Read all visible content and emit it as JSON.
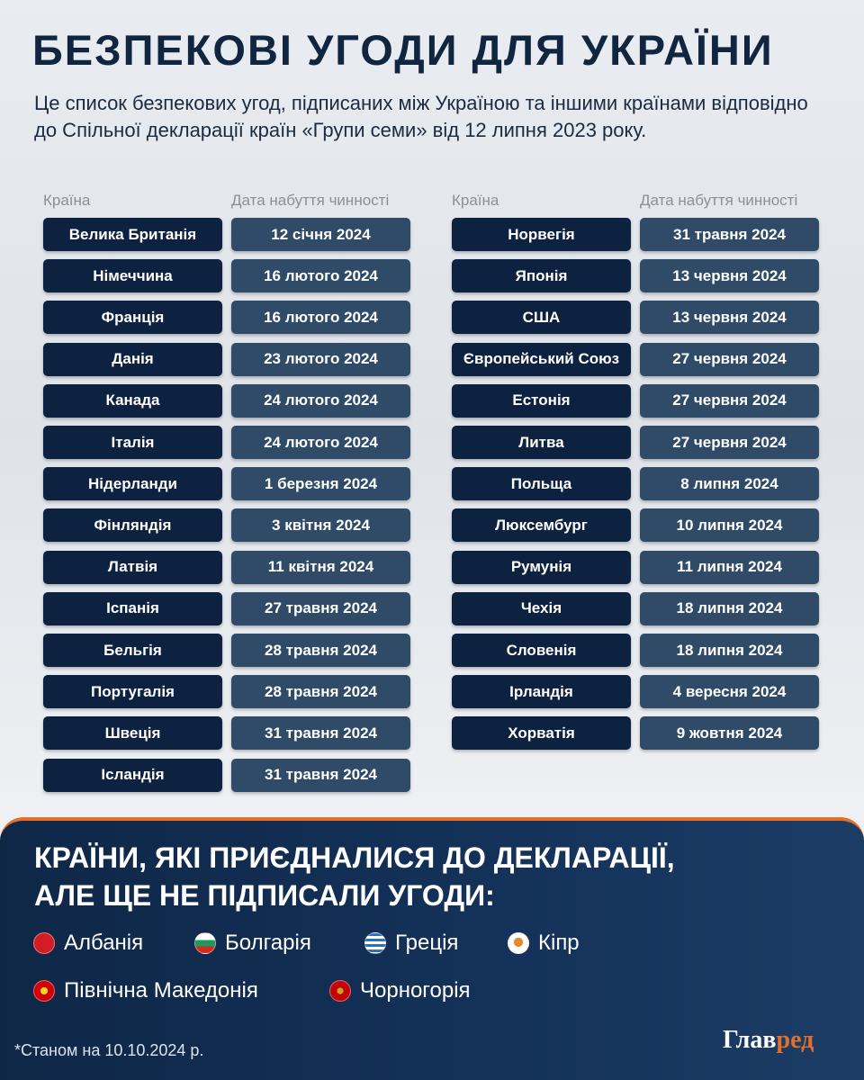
{
  "title": "БЕЗПЕКОВІ УГОДИ ДЛЯ УКРАЇНИ",
  "subtitle": "Це список безпекових угод, підписаних між Україною та іншими країнами відповідно до Спільної декларації країн «Групи семи» від 12 липня 2023 року.",
  "headers": {
    "country": "Країна",
    "date": "Дата набуття чинності"
  },
  "left": [
    [
      "Велика Британія",
      "12 січня 2024"
    ],
    [
      "Німеччина",
      "16 лютого 2024"
    ],
    [
      "Франція",
      "16 лютого 2024"
    ],
    [
      "Данія",
      "23 лютого 2024"
    ],
    [
      "Канада",
      "24 лютого 2024"
    ],
    [
      "Італія",
      "24 лютого 2024"
    ],
    [
      "Нідерланди",
      "1 березня 2024"
    ],
    [
      "Фінляндія",
      "3 квітня 2024"
    ],
    [
      "Латвія",
      "11 квітня 2024"
    ],
    [
      "Іспанія",
      "27 травня 2024"
    ],
    [
      "Бельгія",
      "28 травня 2024"
    ],
    [
      "Португалія",
      "28 травня 2024"
    ],
    [
      "Швеція",
      "31 травня 2024"
    ],
    [
      "Ісландія",
      "31 травня 2024"
    ]
  ],
  "right": [
    [
      "Норвегія",
      "31 травня 2024"
    ],
    [
      "Японія",
      "13 червня 2024"
    ],
    [
      "США",
      "13 червня 2024"
    ],
    [
      "Європейський Союз",
      "27 червня 2024"
    ],
    [
      "Естонія",
      "27 червня 2024"
    ],
    [
      "Литва",
      "27 червня 2024"
    ],
    [
      "Польща",
      "8 липня 2024"
    ],
    [
      "Люксембург",
      "10 липня 2024"
    ],
    [
      "Румунія",
      "11 липня 2024"
    ],
    [
      "Чехія",
      "18 липня 2024"
    ],
    [
      "Словенія",
      "18 липня 2024"
    ],
    [
      "Ірландія",
      "4 вересня 2024"
    ],
    [
      "Хорватія",
      "9 жовтня 2024"
    ]
  ],
  "panel": {
    "title_line1": "КРАЇНИ, ЯКІ ПРИЄДНАЛИСЯ ДО ДЕКЛАРАЦІЇ,",
    "title_line2": "АЛЕ ЩЕ НЕ ПІДПИСАЛИ УГОДИ:",
    "countries": [
      {
        "name": "Албанія",
        "flag": "albania-flag-icon",
        "color": "#d41c24"
      },
      {
        "name": "Болгарія",
        "flag": "bulgaria-flag-icon",
        "color": "linear-gradient(#fff 33%,#1d9a5b 33%,#1d9a5b 66%,#d32b1e 66%)"
      },
      {
        "name": "Греція",
        "flag": "greece-flag-icon",
        "color": "repeating-linear-gradient(#2a6fc0 0 3px,#fff 3px 6px)"
      },
      {
        "name": "Кіпр",
        "flag": "cyprus-flag-icon",
        "color": "radial-gradient(circle at 50% 45%,#e88a2a 30%,#fff 32%)"
      },
      {
        "name": "Північна Македонія",
        "flag": "north-macedonia-flag-icon",
        "color": "radial-gradient(circle,#f7d619 25%,#d20000 27%)"
      },
      {
        "name": "Чорногорія",
        "flag": "montenegro-flag-icon",
        "color": "radial-gradient(circle,#c9a227 22%,#c40308 24%)"
      }
    ]
  },
  "footnote": "*Станом на 10.10.2024 р.",
  "logo": {
    "part1": "Глав",
    "part2": "ред"
  }
}
